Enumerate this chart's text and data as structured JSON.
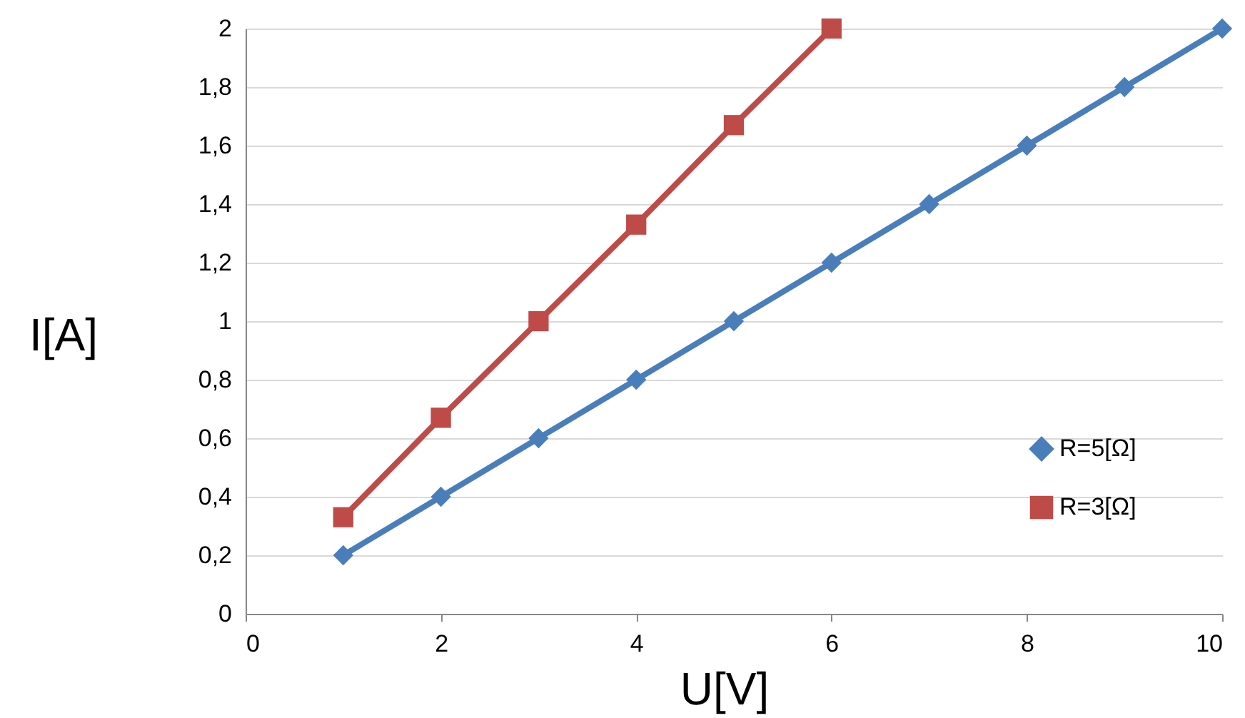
{
  "chart_data": {
    "type": "line",
    "xlabel": "U[V]",
    "ylabel": "I[A]",
    "xlim": [
      0,
      10
    ],
    "xticks": [
      0,
      2,
      4,
      6,
      8,
      10
    ],
    "ylim": [
      0,
      2
    ],
    "yticks": [
      0,
      {
        "value": 0.2,
        "label": "0,2"
      },
      {
        "value": 0.4,
        "label": "0,4"
      },
      {
        "value": 0.6,
        "label": "0,6"
      },
      {
        "value": 0.8,
        "label": "0,8"
      },
      1,
      {
        "value": 1.2,
        "label": "1,2"
      },
      {
        "value": 1.4,
        "label": "1,4"
      },
      {
        "value": 1.6,
        "label": "1,6"
      },
      {
        "value": 1.8,
        "label": "1,8"
      },
      2
    ],
    "grid": "y",
    "legend": "bottom right",
    "series": [
      {
        "name": "R=5[Ω]",
        "color": "#4a7ebb",
        "marker": "diamond",
        "x": [
          1,
          2,
          3,
          4,
          5,
          6,
          7,
          8,
          9,
          10
        ],
        "values": [
          0.2,
          0.4,
          0.6,
          0.8,
          1,
          1.2,
          1.4,
          1.6,
          1.8,
          2
        ]
      },
      {
        "name": "R=3[Ω]",
        "color": "#be4b48",
        "marker": "square",
        "x": [
          1,
          2,
          3,
          4,
          5,
          6
        ],
        "values": [
          0.33,
          0.67,
          1,
          1.33,
          1.67,
          2
        ]
      }
    ]
  }
}
